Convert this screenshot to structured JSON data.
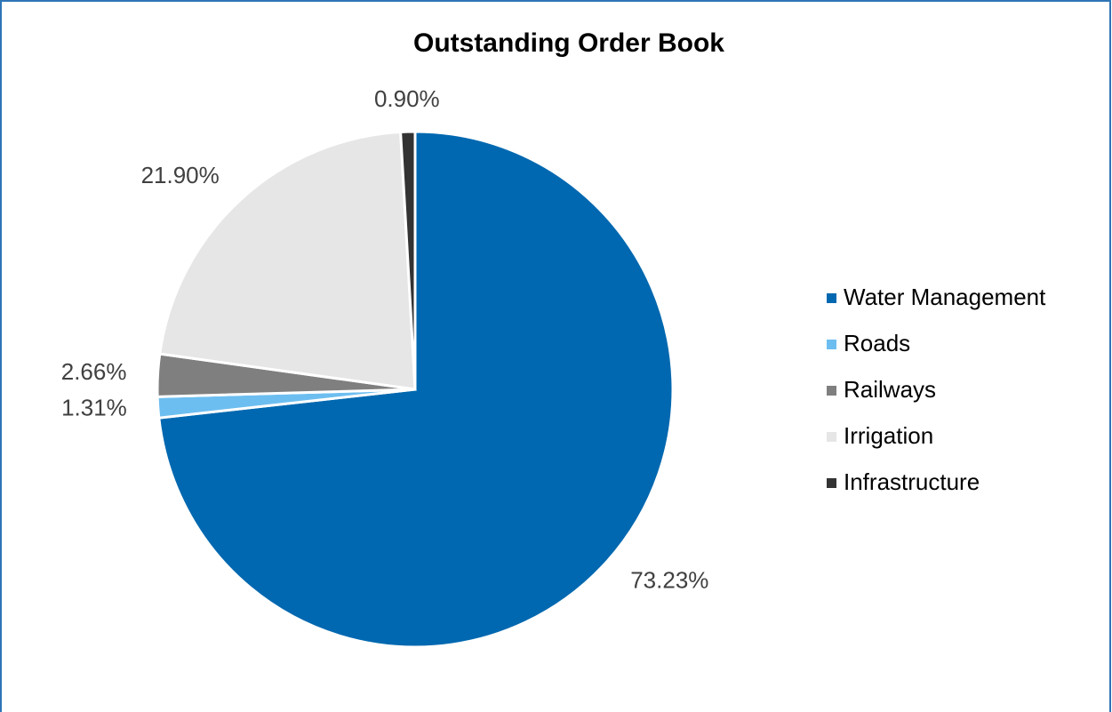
{
  "chart_data": {
    "type": "pie",
    "title": "Outstanding Order Book",
    "categories": [
      "Water Management",
      "Roads",
      "Railways",
      "Irrigation",
      "Infrastructure"
    ],
    "values": [
      73.23,
      1.31,
      2.66,
      21.9,
      0.9
    ],
    "value_labels": [
      "73.23%",
      "1.31%",
      "2.66%",
      "21.90%",
      "0.90%"
    ],
    "colors": [
      "#0068b0",
      "#6dbef0",
      "#7f7f7f",
      "#e6e6e6",
      "#333333"
    ],
    "legend": "right"
  }
}
